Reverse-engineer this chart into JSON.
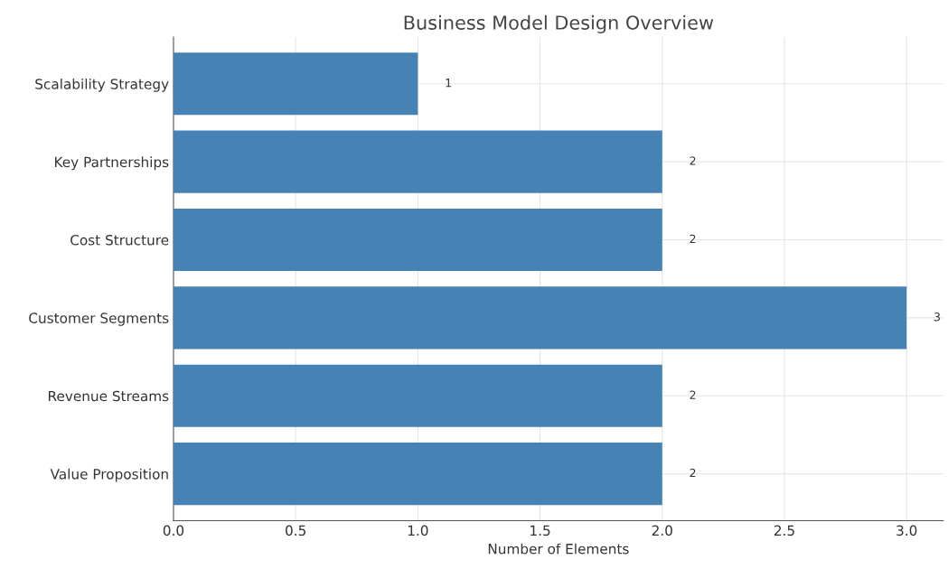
{
  "chart_data": {
    "type": "bar",
    "orientation": "horizontal",
    "title": "Business Model Design Overview",
    "xlabel": "Number of Elements",
    "categories": [
      "Scalability Strategy",
      "Key Partnerships",
      "Cost Structure",
      "Customer Segments",
      "Revenue Streams",
      "Value Proposition"
    ],
    "values": [
      1,
      2,
      2,
      3,
      2,
      2
    ],
    "color": "#4682b4",
    "xlim": [
      0,
      3.15
    ],
    "xticks": [
      {
        "value": 0,
        "label": "0.0"
      },
      {
        "value": 0.5,
        "label": "0.5"
      },
      {
        "value": 1,
        "label": "1.0"
      },
      {
        "value": 1.5,
        "label": "1.5"
      },
      {
        "value": 2,
        "label": "2.0"
      },
      {
        "value": 2.5,
        "label": "2.5"
      },
      {
        "value": 3,
        "label": "3.0"
      }
    ],
    "grid": true,
    "data_labels": true
  }
}
